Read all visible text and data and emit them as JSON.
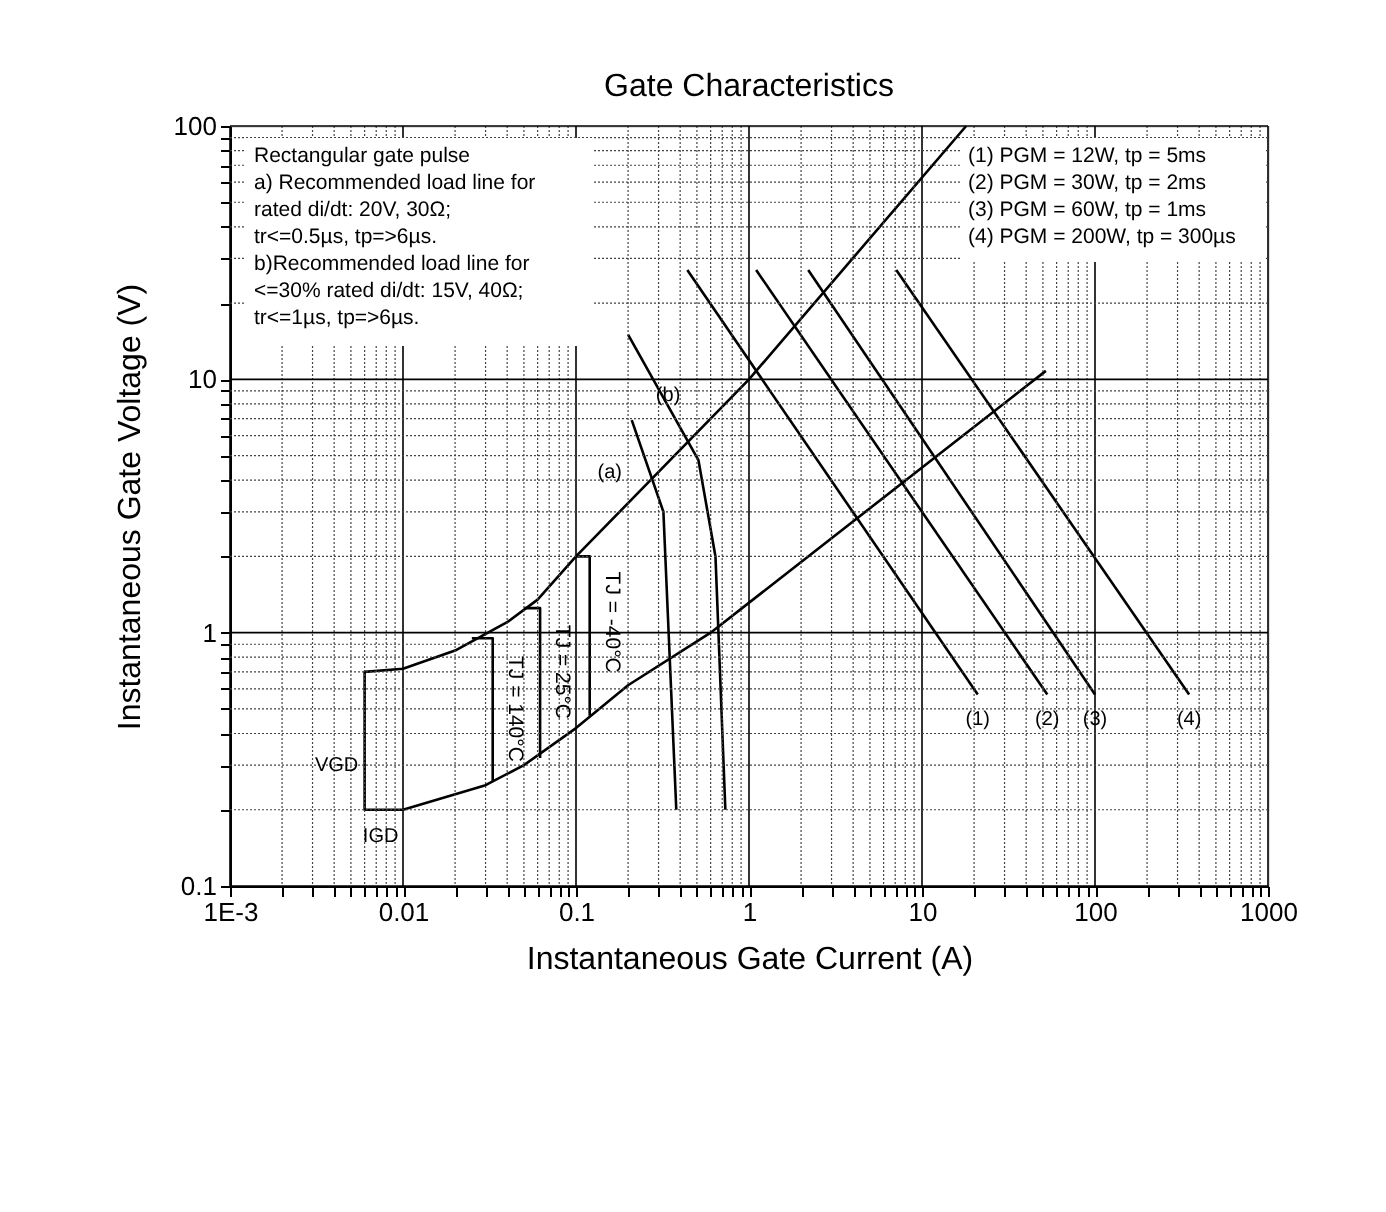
{
  "chart_data": {
    "type": "line",
    "title": "Gate Characteristics",
    "xlabel": "Instantaneous Gate Current (A)",
    "ylabel": "Instantaneous Gate Voltage (V)",
    "log": "xy",
    "grid": true,
    "marker": "none",
    "line_style": "solid",
    "xlim": [
      0.001,
      1000
    ],
    "ylim": [
      0.1,
      100
    ],
    "xticks": [
      {
        "value": 0.001,
        "label": "1E-3"
      },
      {
        "value": 0.002,
        "label": null
      },
      {
        "value": 0.003,
        "label": null
      },
      {
        "value": 0.004,
        "label": null
      },
      {
        "value": 0.005,
        "label": null
      },
      {
        "value": 0.006,
        "label": null
      },
      {
        "value": 0.007,
        "label": null
      },
      {
        "value": 0.008,
        "label": null
      },
      {
        "value": 0.009,
        "label": null
      },
      0.01,
      {
        "value": 0.02,
        "label": null
      },
      {
        "value": 0.03,
        "label": null
      },
      {
        "value": 0.04,
        "label": null
      },
      {
        "value": 0.05,
        "label": null
      },
      {
        "value": 0.06,
        "label": null
      },
      {
        "value": 0.07,
        "label": null
      },
      {
        "value": 0.08,
        "label": null
      },
      {
        "value": 0.09,
        "label": null
      },
      0.1,
      {
        "value": 0.2,
        "label": null
      },
      {
        "value": 0.3,
        "label": null
      },
      {
        "value": 0.4,
        "label": null
      },
      {
        "value": 0.5,
        "label": null
      },
      {
        "value": 0.6,
        "label": null
      },
      {
        "value": 0.7,
        "label": null
      },
      {
        "value": 0.8,
        "label": null
      },
      {
        "value": 0.9,
        "label": null
      },
      1,
      {
        "value": 2,
        "label": null
      },
      {
        "value": 3,
        "label": null
      },
      {
        "value": 4,
        "label": null
      },
      {
        "value": 5,
        "label": null
      },
      {
        "value": 6,
        "label": null
      },
      {
        "value": 7,
        "label": null
      },
      {
        "value": 8,
        "label": null
      },
      {
        "value": 9,
        "label": null
      },
      10,
      {
        "value": 20,
        "label": null
      },
      {
        "value": 30,
        "label": null
      },
      {
        "value": 40,
        "label": null
      },
      {
        "value": 50,
        "label": null
      },
      {
        "value": 60,
        "label": null
      },
      {
        "value": 70,
        "label": null
      },
      {
        "value": 80,
        "label": null
      },
      {
        "value": 90,
        "label": null
      },
      100,
      {
        "value": 200,
        "label": null
      },
      {
        "value": 300,
        "label": null
      },
      {
        "value": 400,
        "label": null
      },
      {
        "value": 500,
        "label": null
      },
      {
        "value": 600,
        "label": null
      },
      {
        "value": 700,
        "label": null
      },
      {
        "value": 800,
        "label": null
      },
      {
        "value": 900,
        "label": null
      },
      1000
    ],
    "yticks": [
      0.1,
      {
        "value": 0.2,
        "label": null
      },
      {
        "value": 0.3,
        "label": null
      },
      {
        "value": 0.4,
        "label": null
      },
      {
        "value": 0.5,
        "label": null
      },
      {
        "value": 0.6,
        "label": null
      },
      {
        "value": 0.7,
        "label": null
      },
      {
        "value": 0.8,
        "label": null
      },
      {
        "value": 0.9,
        "label": null
      },
      1,
      {
        "value": 2,
        "label": null
      },
      {
        "value": 3,
        "label": null
      },
      {
        "value": 4,
        "label": null
      },
      {
        "value": 5,
        "label": null
      },
      {
        "value": 6,
        "label": null
      },
      {
        "value": 7,
        "label": null
      },
      {
        "value": 8,
        "label": null
      },
      {
        "value": 9,
        "label": null
      },
      10,
      {
        "value": 20,
        "label": null
      },
      {
        "value": 30,
        "label": null
      },
      {
        "value": 40,
        "label": null
      },
      {
        "value": 50,
        "label": null
      },
      {
        "value": 60,
        "label": null
      },
      {
        "value": 70,
        "label": null
      },
      {
        "value": 80,
        "label": null
      },
      {
        "value": 90,
        "label": null
      },
      100
    ],
    "series": [
      {
        "color": "#000000",
        "x": [
          18,
          1,
          0.1,
          0.06,
          0.04,
          0.02,
          0.01,
          0.006,
          0.006,
          0.01,
          0.03,
          0.05,
          0.1,
          0.2,
          0.6,
          52
        ],
        "values": [
          100,
          10,
          2,
          1.35,
          1.1,
          0.85,
          0.72,
          0.7,
          0.2,
          0.2,
          0.25,
          0.3,
          0.42,
          0.62,
          1,
          10.8
        ]
      },
      {
        "color": "#000000",
        "x": [
          0.21,
          0.32,
          0.38
        ],
        "values": [
          6.9,
          3.0,
          0.2
        ]
      },
      {
        "color": "#000000",
        "x": [
          0.2,
          0.51,
          0.64,
          0.73
        ],
        "values": [
          15,
          4.8,
          2.0,
          0.2
        ]
      },
      {
        "color": "#000000",
        "x": [
          0.44,
          21
        ],
        "values": [
          27,
          0.57
        ]
      },
      {
        "color": "#000000",
        "x": [
          1.1,
          53
        ],
        "values": [
          27,
          0.57
        ]
      },
      {
        "color": "#000000",
        "x": [
          2.2,
          100
        ],
        "values": [
          27,
          0.57
        ]
      },
      {
        "color": "#000000",
        "x": [
          7.1,
          350
        ],
        "values": [
          27,
          0.57
        ]
      },
      {
        "color": "#000000",
        "x": [
          0.025,
          0.033,
          0.033
        ],
        "values": [
          0.95,
          0.95,
          0.26
        ]
      },
      {
        "color": "#000000",
        "x": [
          0.05,
          0.062,
          0.062
        ],
        "values": [
          1.25,
          1.25,
          0.32
        ]
      },
      {
        "color": "#000000",
        "x": [
          0.1,
          0.12,
          0.12
        ],
        "values": [
          2,
          2,
          0.47
        ]
      }
    ],
    "annotations": [
      "Rectangular gate pulse\na) Recommended load line for\nrated di/dt: 20V, 30Ω;\ntr<=0.5µs, tp=>6µs.\nb)Recommended load line for\n<=30% rated di/dt: 15V, 40Ω;\ntr<=1µs, tp=>6µs.",
      "(1) PGM = 12W, tp = 5ms\n(2) PGM = 30W, tp = 2ms\n(3) PGM = 60W, tp = 1ms\n(4) PGM = 200W, tp = 300µs",
      {
        "text": "TJ = 140°C",
        "x": 0.033,
        "y": 0.5
      },
      {
        "text": "TJ = 25°C",
        "x": 0.062,
        "y": 0.7
      },
      {
        "text": "TJ = -40°C",
        "x": 0.12,
        "y": 1.1
      },
      {
        "text": "(a)",
        "x": 0.21,
        "y": 6.9
      },
      {
        "text": "(b)",
        "x": 0.2,
        "y": 15
      },
      {
        "text": "(1)",
        "x": 21,
        "y": 0.57
      },
      {
        "text": "(2)",
        "x": 53,
        "y": 0.57
      },
      {
        "text": "(3)",
        "x": 100,
        "y": 0.57
      },
      {
        "text": "(4)",
        "x": 350,
        "y": 0.57
      },
      {
        "text": "VGD",
        "x": 0.006,
        "y": 0.3
      },
      {
        "text": "IGD",
        "x": 0.006,
        "y": 0.2
      }
    ]
  }
}
